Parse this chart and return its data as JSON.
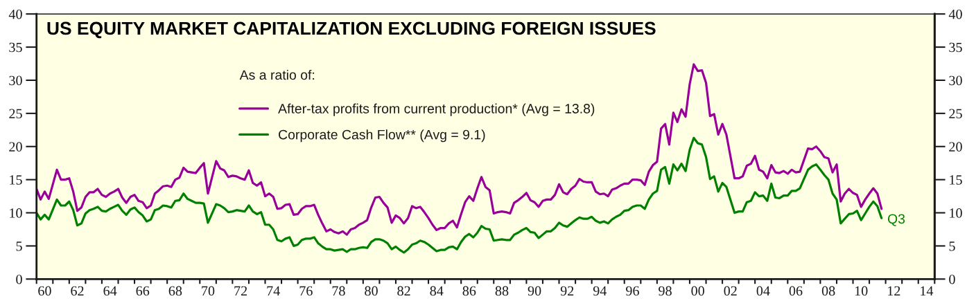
{
  "chart_data": {
    "type": "line",
    "title": "US EQUITY MARKET CAPITALIZATION EXCLUDING FOREIGN ISSUES",
    "legend_title": "As a ratio of:",
    "x": [
      "1960-01",
      "1960-04",
      "1960-07",
      "1960-10",
      "1961-04",
      "1961-07",
      "1961-10",
      "1962-01",
      "1962-04",
      "1962-07",
      "1962-10",
      "1963-01",
      "1963-04",
      "1963-07",
      "1963-10",
      "1964-01",
      "1964-04",
      "1964-07",
      "1964-10",
      "1965-01",
      "1965-04",
      "1965-07",
      "1965-10",
      "1966-01",
      "1966-04",
      "1966-07",
      "1966-10",
      "1967-01",
      "1967-04",
      "1967-07",
      "1967-10",
      "1968-01",
      "1968-04",
      "1968-07",
      "1968-10",
      "1969-01",
      "1969-04",
      "1969-07",
      "1969-10",
      "1970-01",
      "1970-04",
      "1970-07",
      "1971-01",
      "1971-04",
      "1971-07",
      "1971-10",
      "1972-01",
      "1972-04",
      "1972-07",
      "1972-10",
      "1973-01",
      "1973-04",
      "1973-07",
      "1973-10",
      "1974-01",
      "1974-04",
      "1974-07",
      "1974-10",
      "1975-01",
      "1975-04",
      "1975-07",
      "1975-10",
      "1976-01",
      "1976-04",
      "1976-07",
      "1976-10",
      "1977-01",
      "1977-04",
      "1977-07",
      "1977-10",
      "1978-01",
      "1978-04",
      "1978-07",
      "1978-10",
      "1979-01",
      "1979-04",
      "1979-07",
      "1979-10",
      "1980-01",
      "1980-04",
      "1980-07",
      "1980-10",
      "1981-01",
      "1981-04",
      "1981-07",
      "1981-10",
      "1982-01",
      "1982-04",
      "1982-07",
      "1982-10",
      "1983-01",
      "1983-04",
      "1983-07",
      "1983-10",
      "1984-01",
      "1984-04",
      "1984-07",
      "1984-10",
      "1985-01",
      "1985-04",
      "1985-07",
      "1985-10",
      "1986-01",
      "1986-04",
      "1986-07",
      "1986-10",
      "1987-01",
      "1987-04",
      "1987-07",
      "1987-10",
      "1988-01",
      "1988-04",
      "1988-07",
      "1988-10",
      "1989-01",
      "1989-04",
      "1989-07",
      "1989-10",
      "1990-01",
      "1990-04",
      "1990-07",
      "1990-10",
      "1991-01",
      "1991-04",
      "1991-07",
      "1991-10",
      "1992-01",
      "1992-04",
      "1992-07",
      "1992-10",
      "1993-01",
      "1993-04",
      "1993-07",
      "1993-10",
      "1994-01",
      "1994-04",
      "1994-07",
      "1994-10",
      "1995-01",
      "1995-04",
      "1995-07",
      "1995-10",
      "1996-01",
      "1996-04",
      "1996-07",
      "1996-10",
      "1997-01",
      "1997-04",
      "1997-07",
      "1997-10",
      "1998-01",
      "1998-04",
      "1998-07",
      "1998-10",
      "1999-01",
      "1999-04",
      "1999-07",
      "1999-10",
      "2000-01",
      "2000-04",
      "2000-07",
      "2000-10",
      "2001-01",
      "2001-04",
      "2001-07",
      "2001-10",
      "2002-01",
      "2002-04",
      "2002-10",
      "2003-01",
      "2003-04",
      "2003-07",
      "2003-10",
      "2004-01",
      "2004-04",
      "2004-07",
      "2004-10",
      "2005-01",
      "2005-04",
      "2005-07",
      "2005-10",
      "2006-01",
      "2006-04",
      "2006-07",
      "2006-10",
      "2007-04",
      "2007-07",
      "2007-10",
      "2008-01",
      "2008-04",
      "2008-07",
      "2008-10",
      "2009-01",
      "2009-04",
      "2009-07",
      "2009-10",
      "2010-01",
      "2010-04",
      "2010-07",
      "2010-10",
      "2011-01",
      "2011-04",
      "2011-07",
      "2011-10"
    ],
    "series": [
      {
        "name": "After-tax profits from current production* (Avg = 13.8)",
        "color": "#990099",
        "values": [
          13.6,
          12.0,
          13.2,
          12.1,
          16.5,
          15.0,
          15.0,
          15.2,
          13.2,
          10.3,
          10.8,
          12.4,
          13.1,
          13.1,
          13.6,
          12.7,
          12.4,
          12.9,
          13.2,
          13.6,
          12.3,
          11.5,
          12.4,
          12.7,
          11.8,
          11.6,
          10.7,
          11.1,
          12.9,
          13.4,
          14.0,
          14.1,
          13.9,
          15.0,
          15.3,
          16.8,
          16.2,
          16.1,
          16.0,
          16.8,
          17.5,
          12.9,
          17.8,
          16.7,
          16.4,
          15.4,
          15.6,
          15.5,
          15.2,
          15.0,
          16.4,
          14.5,
          14.1,
          14.6,
          12.5,
          12.9,
          12.4,
          10.6,
          10.7,
          11.2,
          11.3,
          9.7,
          9.8,
          10.6,
          11.0,
          11.0,
          11.2,
          9.7,
          8.4,
          7.2,
          7.5,
          7.1,
          6.9,
          7.2,
          6.7,
          7.5,
          7.7,
          8.2,
          8.5,
          8.9,
          10.8,
          12.3,
          12.4,
          11.5,
          10.8,
          8.5,
          9.6,
          9.2,
          8.4,
          9.2,
          11.0,
          10.7,
          10.9,
          10.1,
          9.2,
          8.2,
          7.4,
          7.7,
          7.7,
          8.4,
          8.8,
          7.8,
          9.8,
          11.6,
          12.5,
          11.8,
          13.7,
          15.4,
          13.9,
          13.4,
          9.9,
          10.1,
          10.2,
          10.1,
          9.9,
          11.5,
          11.9,
          12.4,
          13.0,
          11.9,
          11.6,
          10.9,
          11.8,
          12.0,
          12.0,
          12.7,
          14.3,
          13.1,
          12.8,
          13.6,
          14.1,
          15.1,
          14.7,
          14.6,
          14.6,
          13.2,
          12.8,
          12.9,
          12.5,
          13.5,
          13.7,
          14.1,
          14.4,
          14.4,
          15.0,
          15.0,
          14.9,
          14.2,
          16.2,
          17.2,
          17.7,
          22.7,
          23.4,
          20.3,
          25.1,
          23.7,
          25.6,
          24.5,
          29.4,
          32.4,
          31.4,
          31.5,
          29.6,
          24.6,
          24.9,
          21.8,
          23.4,
          21.8,
          15.2,
          15.2,
          15.5,
          17.1,
          17.4,
          18.6,
          16.5,
          16.2,
          15.2,
          17.2,
          16.1,
          16.0,
          16.3,
          15.9,
          16.5,
          16.1,
          16.2,
          19.7,
          19.6,
          20.0,
          19.3,
          18.4,
          18.2,
          16.1,
          17.3,
          11.7,
          12.9,
          13.6,
          13.0,
          12.7,
          10.9,
          12.0,
          12.9,
          13.7,
          12.9,
          10.6
        ]
      },
      {
        "name": "Corporate Cash Flow** (Avg = 9.1)",
        "color": "#008000",
        "values": [
          10.0,
          9.0,
          9.7,
          9.0,
          12.0,
          11.1,
          11.1,
          11.7,
          10.4,
          8.1,
          8.4,
          9.9,
          10.4,
          10.6,
          10.9,
          10.3,
          10.2,
          10.6,
          10.9,
          11.2,
          10.3,
          9.7,
          10.5,
          10.8,
          10.1,
          9.6,
          8.7,
          9.0,
          10.4,
          10.6,
          11.1,
          11.0,
          10.8,
          11.8,
          11.9,
          12.9,
          12.1,
          11.8,
          11.5,
          11.5,
          11.4,
          8.5,
          11.3,
          11.1,
          10.7,
          10.1,
          10.2,
          10.4,
          10.3,
          10.2,
          11.1,
          10.2,
          9.8,
          10.1,
          8.2,
          8.2,
          7.5,
          5.9,
          5.7,
          6.1,
          6.3,
          5.0,
          5.2,
          5.9,
          6.1,
          6.1,
          6.3,
          5.4,
          4.9,
          4.5,
          4.5,
          4.3,
          4.4,
          4.5,
          4.1,
          4.5,
          4.5,
          4.7,
          4.8,
          4.7,
          5.6,
          6.0,
          6.0,
          5.8,
          5.4,
          4.5,
          4.9,
          4.4,
          4.0,
          4.5,
          5.2,
          5.4,
          5.8,
          5.6,
          5.2,
          4.7,
          4.2,
          4.4,
          4.4,
          4.8,
          4.9,
          4.5,
          5.6,
          6.4,
          6.8,
          6.3,
          7.0,
          8.0,
          7.6,
          7.5,
          5.8,
          5.9,
          6.0,
          5.9,
          5.9,
          6.7,
          7.0,
          7.4,
          7.7,
          7.1,
          7.0,
          6.2,
          6.7,
          7.2,
          7.2,
          7.7,
          8.5,
          8.1,
          7.9,
          8.4,
          8.9,
          9.3,
          9.1,
          9.1,
          9.4,
          8.8,
          8.5,
          8.7,
          8.4,
          9.0,
          9.4,
          9.7,
          10.3,
          10.4,
          10.9,
          11.1,
          11.1,
          10.6,
          12.0,
          12.9,
          13.3,
          16.5,
          16.9,
          14.4,
          17.3,
          16.4,
          17.4,
          16.3,
          19.5,
          21.3,
          20.5,
          20.3,
          18.4,
          15.1,
          15.5,
          13.2,
          14.5,
          13.9,
          10.0,
          10.2,
          10.2,
          11.6,
          11.8,
          13.1,
          12.5,
          12.6,
          11.8,
          14.4,
          12.3,
          12.2,
          12.6,
          12.6,
          13.3,
          13.3,
          13.7,
          16.5,
          17.0,
          17.3,
          16.5,
          15.7,
          15.0,
          12.9,
          12.0,
          8.4,
          9.1,
          9.8,
          9.9,
          10.3,
          8.9,
          9.9,
          10.9,
          11.7,
          11.0,
          9.2
        ]
      }
    ],
    "xlim": [
      "1960-01-01",
      "2015-01-01"
    ],
    "xticks": [
      {
        "value": "1960-01-01",
        "label": null
      },
      {
        "value": "1960-07-01",
        "label": "60"
      },
      {
        "value": "1961-01-01",
        "label": null
      },
      {
        "value": "1962-01-01",
        "label": null
      },
      {
        "value": "1962-07-01",
        "label": "62"
      },
      {
        "value": "1963-01-01",
        "label": null
      },
      {
        "value": "1964-01-01",
        "label": null
      },
      {
        "value": "1964-07-01",
        "label": "64"
      },
      {
        "value": "1965-01-01",
        "label": null
      },
      {
        "value": "1966-01-01",
        "label": null
      },
      {
        "value": "1966-07-01",
        "label": "66"
      },
      {
        "value": "1967-01-01",
        "label": null
      },
      {
        "value": "1968-01-01",
        "label": null
      },
      {
        "value": "1968-07-01",
        "label": "68"
      },
      {
        "value": "1969-01-01",
        "label": null
      },
      {
        "value": "1970-01-01",
        "label": null
      },
      {
        "value": "1970-07-01",
        "label": "70"
      },
      {
        "value": "1971-01-01",
        "label": null
      },
      {
        "value": "1972-01-01",
        "label": null
      },
      {
        "value": "1972-07-01",
        "label": "72"
      },
      {
        "value": "1973-01-01",
        "label": null
      },
      {
        "value": "1974-01-01",
        "label": null
      },
      {
        "value": "1974-07-01",
        "label": "74"
      },
      {
        "value": "1975-01-01",
        "label": null
      },
      {
        "value": "1976-01-01",
        "label": null
      },
      {
        "value": "1976-07-01",
        "label": "76"
      },
      {
        "value": "1977-01-01",
        "label": null
      },
      {
        "value": "1978-01-01",
        "label": null
      },
      {
        "value": "1978-07-01",
        "label": "78"
      },
      {
        "value": "1979-01-01",
        "label": null
      },
      {
        "value": "1980-01-01",
        "label": null
      },
      {
        "value": "1980-07-01",
        "label": "80"
      },
      {
        "value": "1981-01-01",
        "label": null
      },
      {
        "value": "1982-01-01",
        "label": null
      },
      {
        "value": "1982-07-01",
        "label": "82"
      },
      {
        "value": "1983-01-01",
        "label": null
      },
      {
        "value": "1984-01-01",
        "label": null
      },
      {
        "value": "1984-07-01",
        "label": "84"
      },
      {
        "value": "1985-01-01",
        "label": null
      },
      {
        "value": "1986-01-01",
        "label": null
      },
      {
        "value": "1986-07-01",
        "label": "86"
      },
      {
        "value": "1987-01-01",
        "label": null
      },
      {
        "value": "1988-01-01",
        "label": null
      },
      {
        "value": "1988-07-01",
        "label": "88"
      },
      {
        "value": "1989-01-01",
        "label": null
      },
      {
        "value": "1990-01-01",
        "label": null
      },
      {
        "value": "1990-07-01",
        "label": "90"
      },
      {
        "value": "1991-01-01",
        "label": null
      },
      {
        "value": "1992-01-01",
        "label": null
      },
      {
        "value": "1992-07-01",
        "label": "92"
      },
      {
        "value": "1993-01-01",
        "label": null
      },
      {
        "value": "1994-01-01",
        "label": null
      },
      {
        "value": "1994-07-01",
        "label": "94"
      },
      {
        "value": "1995-01-01",
        "label": null
      },
      {
        "value": "1996-01-01",
        "label": null
      },
      {
        "value": "1996-07-01",
        "label": "96"
      },
      {
        "value": "1997-01-01",
        "label": null
      },
      {
        "value": "1998-01-01",
        "label": null
      },
      {
        "value": "1998-07-01",
        "label": "98"
      },
      {
        "value": "1999-01-01",
        "label": null
      },
      {
        "value": "2000-01-01",
        "label": null
      },
      {
        "value": "2000-07-01",
        "label": "00"
      },
      {
        "value": "2001-01-01",
        "label": null
      },
      {
        "value": "2002-01-01",
        "label": null
      },
      {
        "value": "2002-07-01",
        "label": "02"
      },
      {
        "value": "2003-01-01",
        "label": null
      },
      {
        "value": "2004-01-01",
        "label": null
      },
      {
        "value": "2004-07-01",
        "label": "04"
      },
      {
        "value": "2005-01-01",
        "label": null
      },
      {
        "value": "2006-01-01",
        "label": null
      },
      {
        "value": "2006-07-01",
        "label": "06"
      },
      {
        "value": "2007-01-01",
        "label": null
      },
      {
        "value": "2008-01-01",
        "label": null
      },
      {
        "value": "2008-07-01",
        "label": "08"
      },
      {
        "value": "2009-01-01",
        "label": null
      },
      {
        "value": "2010-01-01",
        "label": null
      },
      {
        "value": "2010-07-01",
        "label": "10"
      },
      {
        "value": "2011-01-01",
        "label": null
      },
      {
        "value": "2012-01-01",
        "label": null
      },
      {
        "value": "2012-07-01",
        "label": "12"
      },
      {
        "value": "2013-01-01",
        "label": null
      },
      {
        "value": "2014-01-01",
        "label": null
      },
      {
        "value": "2014-07-01",
        "label": "14"
      },
      {
        "value": "2015-01-01",
        "label": null
      }
    ],
    "ylim": [
      0,
      40
    ],
    "yticks": [
      0,
      5,
      10,
      15,
      20,
      25,
      30,
      35,
      40
    ],
    "y2lim": [
      0,
      40
    ],
    "y2ticks": [
      0,
      5,
      10,
      15,
      20,
      25,
      30,
      35,
      40
    ],
    "annotations": [
      {
        "text": "Q3",
        "x": "2011-10",
        "y": 9.2
      }
    ],
    "legend": "top",
    "marker": "none",
    "line_style": "solid"
  }
}
